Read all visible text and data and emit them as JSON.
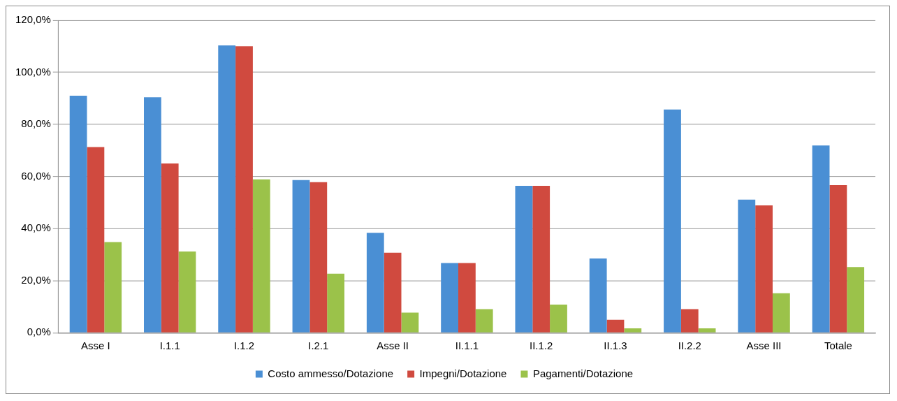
{
  "chart_data": {
    "type": "bar",
    "categories": [
      "Asse I",
      "I.1.1",
      "I.1.2",
      "I.2.1",
      "Asse II",
      "II.1.1",
      "II.1.2",
      "II.1.3",
      "II.2.2",
      "Asse III",
      "Totale"
    ],
    "series": [
      {
        "name": "Costo ammesso/Dotazione",
        "color": "#4a8fd4",
        "values": [
          91.0,
          90.4,
          110.3,
          58.6,
          38.4,
          26.8,
          56.4,
          28.5,
          85.7,
          51.1,
          71.9
        ]
      },
      {
        "name": "Impegni/Dotazione",
        "color": "#d04a3f",
        "values": [
          71.3,
          65.0,
          110.0,
          57.8,
          30.7,
          26.8,
          56.4,
          5.0,
          9.1,
          48.9,
          56.7
        ]
      },
      {
        "name": "Pagamenti/Dotazione",
        "color": "#9bc24a",
        "values": [
          34.8,
          31.2,
          58.9,
          22.7,
          7.7,
          9.1,
          10.8,
          1.7,
          1.7,
          15.2,
          25.2
        ]
      }
    ],
    "ylim": [
      0,
      120
    ],
    "yticks": [
      {
        "value": 0,
        "label": "0,0%"
      },
      {
        "value": 20,
        "label": "20,0%"
      },
      {
        "value": 40,
        "label": "40,0%"
      },
      {
        "value": 60,
        "label": "60,0%"
      },
      {
        "value": 80,
        "label": "80,0%"
      },
      {
        "value": 100,
        "label": "100,0%"
      },
      {
        "value": 120,
        "label": "120,0%"
      }
    ],
    "grid": "y",
    "legend": "bottom"
  }
}
